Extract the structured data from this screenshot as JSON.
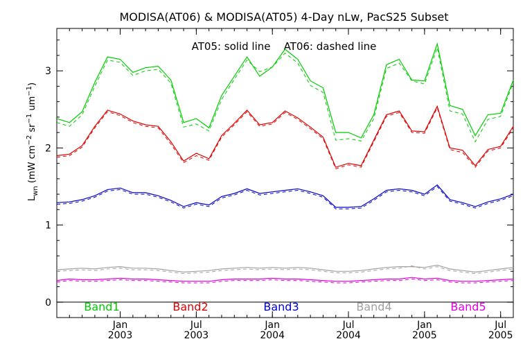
{
  "chart_data": {
    "type": "line",
    "title": "MODISA(AT06) & MODISA(AT05) 4-Day nLw, PacS25 Subset",
    "annotation": "AT05: solid line    AT06: dashed line",
    "ylabel": "L_wn (mW cm^-2 sr^-1 um^-1)",
    "ylim": [
      -0.2,
      3.55
    ],
    "yticks": [
      0,
      1,
      2,
      3
    ],
    "xticks": [
      {
        "top": "Jan",
        "bottom": "2003"
      },
      {
        "top": "Jul",
        "bottom": "2003"
      },
      {
        "top": "Jan",
        "bottom": "2004"
      },
      {
        "top": "Jul",
        "bottom": "2004"
      },
      {
        "top": "Jan",
        "bottom": "2005"
      },
      {
        "top": "Jul",
        "bottom": "2005"
      }
    ],
    "series": [
      {
        "name": "Band1",
        "color": "#00cc00",
        "solid": [
          2.38,
          2.33,
          2.47,
          2.85,
          3.18,
          3.15,
          2.98,
          3.04,
          3.06,
          2.88,
          2.33,
          2.38,
          2.26,
          2.68,
          2.93,
          3.18,
          2.93,
          3.05,
          3.28,
          3.15,
          2.87,
          2.78,
          2.2,
          2.2,
          2.13,
          2.43,
          3.08,
          3.15,
          2.88,
          2.87,
          3.35,
          2.55,
          2.5,
          2.16,
          2.43,
          2.45,
          2.88
        ],
        "dashed": [
          2.33,
          2.28,
          2.43,
          2.8,
          3.14,
          3.11,
          2.94,
          3.0,
          3.02,
          2.84,
          2.27,
          2.31,
          2.22,
          2.63,
          2.89,
          3.14,
          2.99,
          3.05,
          3.23,
          3.1,
          2.81,
          2.72,
          2.1,
          2.12,
          2.09,
          2.38,
          3.03,
          3.1,
          2.87,
          2.83,
          3.3,
          2.48,
          2.44,
          2.08,
          2.37,
          2.41,
          2.85
        ]
      },
      {
        "name": "Band2",
        "color": "#e00000",
        "solid": [
          1.9,
          1.92,
          2.03,
          2.28,
          2.49,
          2.44,
          2.35,
          2.3,
          2.28,
          2.08,
          1.83,
          1.93,
          1.86,
          2.16,
          2.32,
          2.49,
          2.3,
          2.33,
          2.48,
          2.39,
          2.27,
          2.14,
          1.75,
          1.8,
          1.77,
          2.1,
          2.43,
          2.48,
          2.22,
          2.21,
          2.54,
          2.0,
          1.97,
          1.77,
          1.98,
          2.02,
          2.28
        ],
        "dashed": [
          1.88,
          1.9,
          2.01,
          2.26,
          2.47,
          2.42,
          2.33,
          2.28,
          2.26,
          2.05,
          1.81,
          1.9,
          1.84,
          2.14,
          2.3,
          2.47,
          2.28,
          2.31,
          2.46,
          2.37,
          2.25,
          2.12,
          1.73,
          1.78,
          1.75,
          2.08,
          2.41,
          2.46,
          2.2,
          2.19,
          2.52,
          1.98,
          1.94,
          1.75,
          1.96,
          2.0,
          2.26
        ]
      },
      {
        "name": "Band3",
        "color": "#0000cc",
        "solid": [
          1.29,
          1.3,
          1.33,
          1.38,
          1.46,
          1.48,
          1.42,
          1.42,
          1.38,
          1.32,
          1.24,
          1.29,
          1.26,
          1.37,
          1.41,
          1.47,
          1.41,
          1.43,
          1.45,
          1.47,
          1.43,
          1.38,
          1.23,
          1.23,
          1.24,
          1.34,
          1.45,
          1.47,
          1.45,
          1.4,
          1.52,
          1.33,
          1.29,
          1.24,
          1.3,
          1.34,
          1.4
        ],
        "dashed": [
          1.27,
          1.28,
          1.31,
          1.36,
          1.44,
          1.46,
          1.4,
          1.4,
          1.36,
          1.3,
          1.22,
          1.27,
          1.24,
          1.35,
          1.39,
          1.45,
          1.39,
          1.41,
          1.43,
          1.45,
          1.41,
          1.36,
          1.21,
          1.21,
          1.22,
          1.32,
          1.43,
          1.45,
          1.43,
          1.38,
          1.5,
          1.31,
          1.27,
          1.22,
          1.28,
          1.32,
          1.38
        ]
      },
      {
        "name": "Band4",
        "color": "#a0a0a0",
        "solid": [
          0.42,
          0.43,
          0.44,
          0.43,
          0.45,
          0.46,
          0.44,
          0.44,
          0.43,
          0.41,
          0.39,
          0.4,
          0.41,
          0.43,
          0.44,
          0.45,
          0.44,
          0.45,
          0.44,
          0.45,
          0.44,
          0.42,
          0.4,
          0.4,
          0.41,
          0.43,
          0.45,
          0.46,
          0.46,
          0.45,
          0.48,
          0.43,
          0.41,
          0.39,
          0.41,
          0.43,
          0.45
        ],
        "dashed": [
          0.4,
          0.41,
          0.42,
          0.41,
          0.43,
          0.44,
          0.42,
          0.42,
          0.41,
          0.39,
          0.37,
          0.38,
          0.39,
          0.41,
          0.42,
          0.43,
          0.42,
          0.43,
          0.42,
          0.43,
          0.42,
          0.4,
          0.38,
          0.38,
          0.39,
          0.41,
          0.43,
          0.44,
          0.47,
          0.43,
          0.46,
          0.41,
          0.39,
          0.37,
          0.39,
          0.41,
          0.43
        ]
      },
      {
        "name": "Band5",
        "color": "#e000e0",
        "solid": [
          0.28,
          0.3,
          0.29,
          0.29,
          0.3,
          0.31,
          0.3,
          0.3,
          0.29,
          0.28,
          0.27,
          0.27,
          0.27,
          0.29,
          0.3,
          0.3,
          0.3,
          0.31,
          0.3,
          0.3,
          0.29,
          0.28,
          0.27,
          0.27,
          0.28,
          0.29,
          0.3,
          0.3,
          0.32,
          0.3,
          0.31,
          0.28,
          0.27,
          0.27,
          0.28,
          0.29,
          0.3
        ],
        "dashed": [
          0.26,
          0.28,
          0.27,
          0.27,
          0.28,
          0.29,
          0.28,
          0.28,
          0.27,
          0.26,
          0.25,
          0.25,
          0.25,
          0.27,
          0.28,
          0.28,
          0.28,
          0.29,
          0.28,
          0.28,
          0.27,
          0.26,
          0.25,
          0.25,
          0.26,
          0.27,
          0.28,
          0.28,
          0.3,
          0.28,
          0.29,
          0.26,
          0.25,
          0.25,
          0.26,
          0.27,
          0.28
        ]
      }
    ]
  }
}
